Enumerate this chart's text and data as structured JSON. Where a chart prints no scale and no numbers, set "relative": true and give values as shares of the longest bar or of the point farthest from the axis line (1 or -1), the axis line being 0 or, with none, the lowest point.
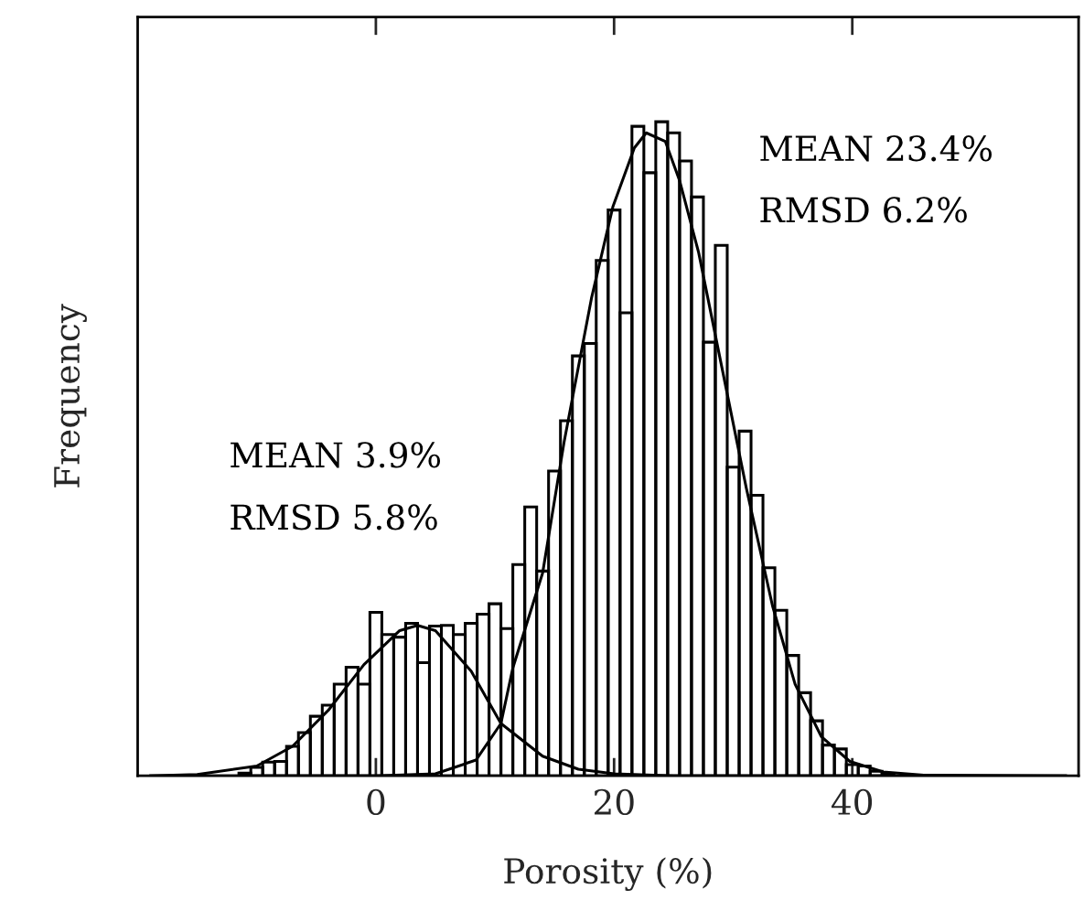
{
  "chart_data": {
    "type": "histogram",
    "relative": true,
    "xlabel": "Porosity (%)",
    "ylabel": "Frequency",
    "bins": [
      -11.5,
      -10.5,
      -9.5,
      -8.5,
      -7.5,
      -6.5,
      -5.5,
      -4.5,
      -3.5,
      -2.5,
      -1.5,
      -0.5,
      0.5,
      1.5,
      2.5,
      3.5,
      4.5,
      5.5,
      6.5,
      7.5,
      8.5,
      9.5,
      10.5,
      11.5,
      12.5,
      13.5,
      14.5,
      15.5,
      16.5,
      17.5,
      18.5,
      19.5,
      20.5,
      21.5,
      22.5,
      23.5,
      24.5,
      25.5,
      26.5,
      27.5,
      28.5,
      29.5,
      30.5,
      31.5,
      32.5,
      33.5,
      34.5,
      35.5,
      36.5,
      37.5,
      38.5,
      39.5,
      40.5,
      41.5,
      42.5,
      43.5
    ],
    "values": [
      0.004,
      0.013,
      0.021,
      0.022,
      0.045,
      0.066,
      0.091,
      0.108,
      0.14,
      0.166,
      0.14,
      0.25,
      0.216,
      0.212,
      0.233,
      0.173,
      0.229,
      0.23,
      0.216,
      0.233,
      0.247,
      0.263,
      0.225,
      0.323,
      0.411,
      0.313,
      0.466,
      0.543,
      0.642,
      0.661,
      0.788,
      0.865,
      0.708,
      0.993,
      0.922,
      1,
      0.983,
      0.94,
      0.885,
      0.663,
      0.811,
      0.472,
      0.527,
      0.429,
      0.318,
      0.253,
      0.184,
      0.127,
      0.084,
      0.047,
      0.041,
      0.017,
      0.015,
      0.007,
      0.003
    ],
    "color": "#000000",
    "series": [
      {
        "type": "line",
        "color": "#000000",
        "x": [
          -19,
          -15,
          -10,
          -7,
          -4,
          -1,
          2,
          3.5,
          5,
          8,
          10.5,
          14,
          17,
          20,
          25,
          58
        ],
        "values": [
          0,
          0.002,
          0.015,
          0.045,
          0.1,
          0.17,
          0.222,
          0.23,
          0.222,
          0.16,
          0.08,
          0.03,
          0.01,
          0.003,
          0,
          0
        ]
      },
      {
        "type": "line",
        "color": "#000000",
        "x": [
          -19,
          0,
          5,
          8.4,
          10.5,
          11.5,
          14,
          15.8,
          18.1,
          19.9,
          21.7,
          22.7,
          24.3,
          25.5,
          27.1,
          29.1,
          31.1,
          33.3,
          35.2,
          37.4,
          39.8,
          42.6,
          46,
          58
        ],
        "values": [
          0,
          0,
          0.003,
          0.024,
          0.08,
          0.165,
          0.31,
          0.51,
          0.73,
          0.87,
          0.96,
          0.983,
          0.97,
          0.91,
          0.8,
          0.62,
          0.44,
          0.26,
          0.14,
          0.06,
          0.022,
          0.006,
          0.001,
          0
        ]
      }
    ],
    "xlim": [
      -20,
      59
    ],
    "xticks": [
      0,
      20,
      40
    ],
    "tick_labels": "x",
    "grid": false,
    "legend": false,
    "annotations": [
      "MEAN 23.4%",
      "RMSD 6.2%",
      "MEAN 3.9%",
      "RMSD 5.8%"
    ]
  }
}
